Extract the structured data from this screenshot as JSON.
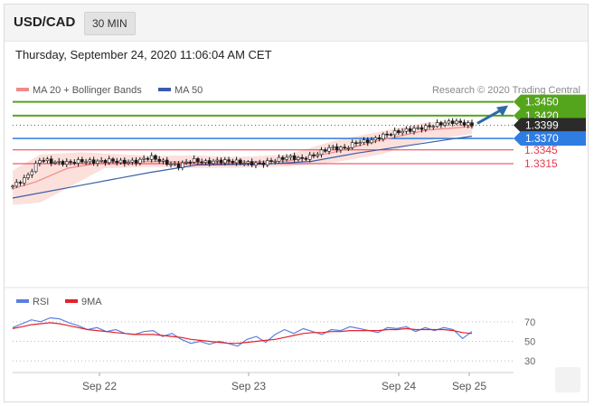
{
  "header": {
    "pair": "USD/CAD",
    "timeframe": "30 MIN"
  },
  "subtitle": "Thursday, September 24, 2020 11:06:04 AM CET",
  "legend": {
    "ma20_label": "MA 20 + Bollinger Bands",
    "ma50_label": "MA 50",
    "rsi_label": "RSI",
    "rsi9_label": "9MA"
  },
  "copyright": "Research © 2020 Trading Central",
  "colors": {
    "green": "#55a51c",
    "blue": "#2f7de1",
    "red": "#e8394a",
    "ma20": "#f08a8a",
    "ma50": "#3a5da8",
    "band": "#fbdad6",
    "candle": "#1a1a1a",
    "dark_label": "#2b2b2b",
    "arrow": "#2f6aa8",
    "rsi": "#5b7fe0",
    "rsi9": "#e3222a"
  },
  "chart_data": [
    {
      "type": "candlestick",
      "title": "USD/CAD 30 MIN",
      "ylim": [
        1.307,
        1.3475
      ],
      "x_ticks": [
        "Sep 22",
        "Sep 23",
        "Sep 24",
        "Sep 25"
      ],
      "levels": [
        {
          "value": 1.345,
          "label": "1.3450",
          "color": "#55a51c",
          "style": "tag"
        },
        {
          "value": 1.342,
          "label": "1.3420",
          "color": "#55a51c",
          "style": "tag"
        },
        {
          "value": 1.3399,
          "label": "1.3399",
          "color": "#2b2b2b",
          "style": "tag",
          "dotted": true
        },
        {
          "value": 1.337,
          "label": "1.3370",
          "color": "#2f7de1",
          "style": "tag"
        },
        {
          "value": 1.3345,
          "label": "1.3345",
          "color": "#e8394a",
          "style": "text"
        },
        {
          "value": 1.3315,
          "label": "1.3315",
          "color": "#e8394a",
          "style": "text"
        }
      ],
      "close_path": [
        [
          0.0,
          1.3266
        ],
        [
          0.03,
          1.3285
        ],
        [
          0.06,
          1.3325
        ],
        [
          0.09,
          1.3318
        ],
        [
          0.12,
          1.3317
        ],
        [
          0.15,
          1.3321
        ],
        [
          0.18,
          1.3319
        ],
        [
          0.21,
          1.3322
        ],
        [
          0.24,
          1.3318
        ],
        [
          0.27,
          1.332
        ],
        [
          0.3,
          1.333
        ],
        [
          0.33,
          1.3318
        ],
        [
          0.36,
          1.331
        ],
        [
          0.39,
          1.3323
        ],
        [
          0.42,
          1.3318
        ],
        [
          0.45,
          1.3321
        ],
        [
          0.48,
          1.332
        ],
        [
          0.51,
          1.3316
        ],
        [
          0.54,
          1.3315
        ],
        [
          0.57,
          1.3322
        ],
        [
          0.6,
          1.333
        ],
        [
          0.63,
          1.3325
        ],
        [
          0.66,
          1.3335
        ],
        [
          0.69,
          1.335
        ],
        [
          0.72,
          1.3348
        ],
        [
          0.75,
          1.3362
        ],
        [
          0.78,
          1.3365
        ],
        [
          0.81,
          1.3378
        ],
        [
          0.84,
          1.3385
        ],
        [
          0.87,
          1.339
        ],
        [
          0.9,
          1.3395
        ],
        [
          0.93,
          1.3402
        ],
        [
          0.96,
          1.3407
        ],
        [
          1.0,
          1.3399
        ]
      ],
      "ma50_path": [
        [
          0.0,
          1.324
        ],
        [
          0.15,
          1.3268
        ],
        [
          0.3,
          1.3296
        ],
        [
          0.4,
          1.3312
        ],
        [
          0.55,
          1.3314
        ],
        [
          0.65,
          1.332
        ],
        [
          0.75,
          1.3338
        ],
        [
          0.85,
          1.3353
        ],
        [
          0.95,
          1.3368
        ],
        [
          1.0,
          1.3375
        ]
      ],
      "ma20_path": [
        [
          0.0,
          1.326
        ],
        [
          0.05,
          1.3275
        ],
        [
          0.12,
          1.3305
        ],
        [
          0.2,
          1.3318
        ],
        [
          0.3,
          1.332
        ],
        [
          0.4,
          1.3318
        ],
        [
          0.5,
          1.3319
        ],
        [
          0.6,
          1.3321
        ],
        [
          0.7,
          1.334
        ],
        [
          0.8,
          1.3366
        ],
        [
          0.9,
          1.3388
        ],
        [
          1.0,
          1.3396
        ]
      ],
      "band_upper": [
        [
          0.0,
          1.33
        ],
        [
          0.06,
          1.3335
        ],
        [
          0.15,
          1.334
        ],
        [
          0.3,
          1.3332
        ],
        [
          0.4,
          1.3333
        ],
        [
          0.5,
          1.333
        ],
        [
          0.6,
          1.3335
        ],
        [
          0.7,
          1.3365
        ],
        [
          0.8,
          1.3385
        ],
        [
          0.9,
          1.3405
        ],
        [
          1.0,
          1.341
        ]
      ],
      "band_lower": [
        [
          0.0,
          1.3225
        ],
        [
          0.06,
          1.323
        ],
        [
          0.12,
          1.3262
        ],
        [
          0.2,
          1.3305
        ],
        [
          0.3,
          1.3308
        ],
        [
          0.4,
          1.3305
        ],
        [
          0.5,
          1.3306
        ],
        [
          0.6,
          1.3309
        ],
        [
          0.7,
          1.3318
        ],
        [
          0.8,
          1.3335
        ],
        [
          0.9,
          1.3365
        ],
        [
          1.0,
          1.338
        ]
      ]
    },
    {
      "type": "line",
      "title": "RSI",
      "ylim": [
        20,
        80
      ],
      "y_ticks": [
        70,
        50,
        30
      ],
      "series": [
        {
          "name": "RSI",
          "values": [
            64,
            68,
            72,
            70,
            74,
            73,
            69,
            66,
            62,
            64,
            60,
            62,
            58,
            57,
            60,
            61,
            55,
            58,
            52,
            48,
            50,
            47,
            50,
            48,
            45,
            52,
            55,
            49,
            57,
            62,
            58,
            63,
            60,
            57,
            62,
            61,
            65,
            63,
            61,
            59,
            64,
            63,
            65,
            60,
            64,
            61,
            64,
            62,
            53,
            60
          ]
        },
        {
          "name": "9MA",
          "values": [
            63,
            65,
            67,
            68,
            69,
            68,
            66,
            64,
            62,
            61,
            60,
            59,
            58,
            57,
            57,
            57,
            56,
            55,
            54,
            52,
            51,
            50,
            49,
            48,
            48,
            49,
            50,
            51,
            52,
            54,
            56,
            58,
            59,
            59,
            60,
            60,
            61,
            61,
            61,
            61,
            62,
            62,
            63,
            62,
            62,
            62,
            62,
            61,
            59,
            58
          ]
        }
      ]
    }
  ]
}
